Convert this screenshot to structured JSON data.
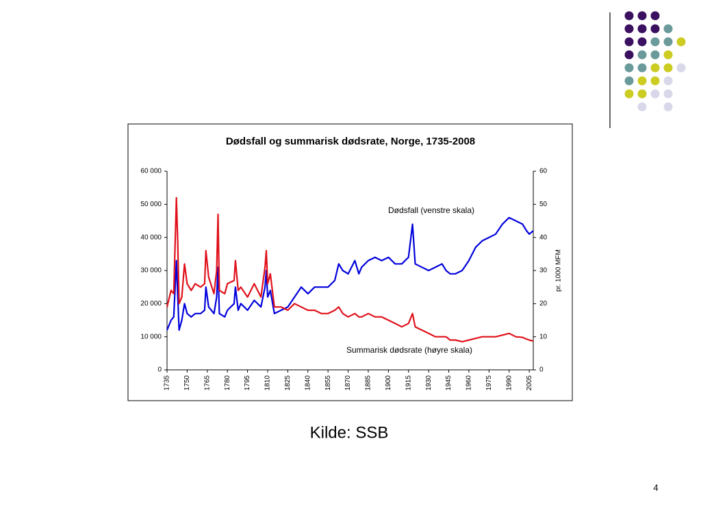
{
  "chart_data": {
    "type": "line",
    "title": "Dødsfall og summarisk dødsrate, Norge, 1735-2008",
    "y2_label": "pr. 1000 MFM",
    "x": [
      1735,
      1738,
      1740,
      1742,
      1743,
      1744,
      1746,
      1748,
      1750,
      1753,
      1756,
      1760,
      1763,
      1764,
      1766,
      1770,
      1772,
      1773,
      1774,
      1778,
      1780,
      1785,
      1786,
      1788,
      1790,
      1795,
      1800,
      1805,
      1808,
      1809,
      1810,
      1812,
      1815,
      1820,
      1825,
      1830,
      1835,
      1840,
      1845,
      1850,
      1855,
      1860,
      1863,
      1866,
      1870,
      1875,
      1878,
      1880,
      1885,
      1890,
      1895,
      1900,
      1905,
      1910,
      1915,
      1918,
      1920,
      1925,
      1930,
      1935,
      1940,
      1943,
      1946,
      1950,
      1955,
      1960,
      1965,
      1970,
      1975,
      1980,
      1985,
      1990,
      1995,
      2000,
      2003,
      2005,
      2008
    ],
    "series": [
      {
        "name": "Dødsfall (venstre skala)",
        "color": "#0000dd",
        "values": [
          12000,
          15000,
          16000,
          33000,
          22000,
          12000,
          15000,
          20000,
          17000,
          16000,
          17000,
          17000,
          18000,
          25000,
          19000,
          17000,
          22000,
          31000,
          17000,
          16000,
          18000,
          20000,
          25000,
          18000,
          20000,
          18000,
          21000,
          19000,
          25000,
          30000,
          22000,
          24000,
          17000,
          18000,
          19000,
          22000,
          25000,
          23000,
          25000,
          25000,
          25000,
          27000,
          32000,
          30000,
          29000,
          33000,
          29000,
          31000,
          33000,
          34000,
          33000,
          34000,
          32000,
          32000,
          34000,
          44000,
          32000,
          31000,
          30000,
          31000,
          32000,
          30000,
          29000,
          29000,
          30000,
          33000,
          37000,
          39000,
          40000,
          41000,
          44000,
          46000,
          45000,
          44000,
          42000,
          41000,
          42000
        ]
      },
      {
        "name": "Summarisk dødsrate (høyre skala)",
        "color": "#e0101a",
        "axis": "y2",
        "values": [
          19,
          24,
          23,
          52,
          38,
          20,
          22,
          32,
          26,
          24,
          26,
          25,
          26,
          36,
          28,
          23,
          30,
          47,
          24,
          23,
          26,
          27,
          33,
          24,
          25,
          22,
          26,
          22,
          31,
          36,
          26,
          29,
          19,
          19,
          18,
          20,
          19,
          18,
          18,
          17,
          17,
          18,
          19,
          17,
          16,
          17,
          16,
          16,
          17,
          16,
          16,
          15,
          14,
          13,
          14,
          17,
          13,
          12,
          11,
          10,
          10,
          10,
          9,
          9,
          8.5,
          9,
          9.5,
          10,
          10,
          10,
          10.5,
          11,
          10,
          9.8,
          9.3,
          9,
          8.7
        ]
      }
    ],
    "xlim": [
      1735,
      2008
    ],
    "xticks": [
      1735,
      1750,
      1765,
      1780,
      1795,
      1810,
      1825,
      1840,
      1855,
      1870,
      1885,
      1900,
      1915,
      1930,
      1945,
      1960,
      1975,
      1990,
      2005
    ],
    "ylim": [
      0,
      60000
    ],
    "yticks": [
      0,
      {
        "value": 10000,
        "label": "10 000"
      },
      {
        "value": 20000,
        "label": "20 000"
      },
      {
        "value": 30000,
        "label": "30 000"
      },
      {
        "value": 40000,
        "label": "40 000"
      },
      {
        "value": 50000,
        "label": "50 000"
      },
      {
        "value": 60000,
        "label": "60 000"
      }
    ],
    "y2lim": [
      0,
      60
    ],
    "y2ticks": [
      0,
      10,
      20,
      30,
      40,
      50,
      60
    ],
    "grid": false
  },
  "slide": {
    "source": "Kilde: SSB",
    "page_number": "4"
  }
}
